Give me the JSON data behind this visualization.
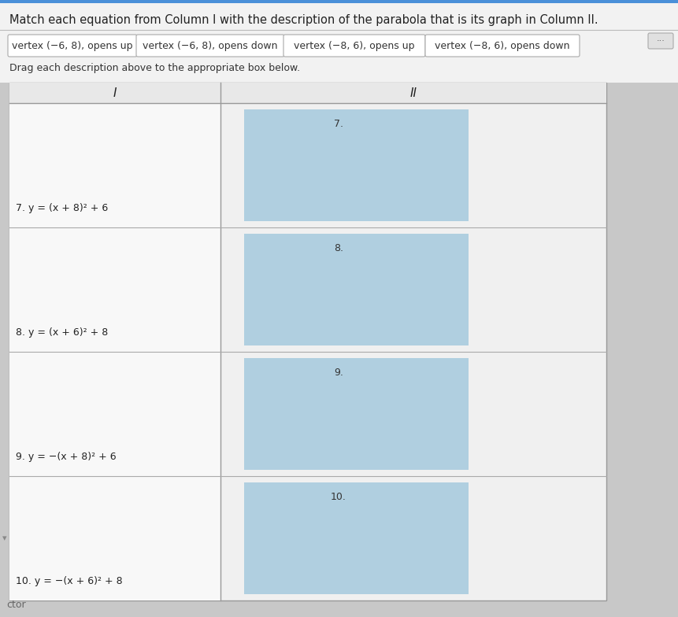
{
  "title": "Match each equation from Column I with the description of the parabola that is its graph in Column II.",
  "subtitle": "Drag each description above to the appropriate box below.",
  "drag_labels": [
    "vertex (−6, 8), opens up",
    "vertex (−6, 8), opens down",
    "vertex (−8, 6), opens up",
    "vertex (−8, 6), opens down"
  ],
  "rows": [
    {
      "num": "7.",
      "eq": "7. y = (x + 8)² + 6"
    },
    {
      "num": "8.",
      "eq": "8. y = (x + 6)² + 8"
    },
    {
      "num": "9.",
      "eq": "9. y = −(x + 8)² + 6"
    },
    {
      "num": "10.",
      "eq": "10. y = −(x + 6)² + 8"
    }
  ],
  "col1_header": "I",
  "col2_header": "II",
  "page_bg": "#d0d0d0",
  "white_panel_bg": "#f5f5f5",
  "drag_box_bg": "#ffffff",
  "drag_box_border": "#aaaaaa",
  "table_col1_bg": "#f0f0f0",
  "table_col2_bg": "#f0f0f0",
  "blue_box_color": "#b0cfe0",
  "header_bg": "#e8e8e8",
  "table_border": "#999999",
  "row_sep_color": "#aaaaaa",
  "title_fontsize": 10.5,
  "label_fontsize": 9,
  "eq_fontsize": 9,
  "header_fontsize": 11
}
